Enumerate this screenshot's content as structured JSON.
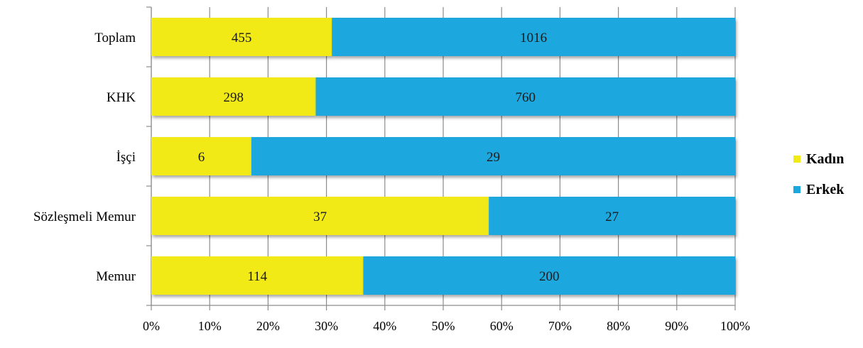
{
  "chart_data": {
    "type": "bar",
    "orientation": "horizontal",
    "stacking": "percent",
    "categories": [
      "Toplam",
      "KHK",
      "İşçi",
      "Sözleşmeli Memur",
      "Memur"
    ],
    "series": [
      {
        "name": "Kadın",
        "values": [
          455,
          298,
          6,
          37,
          114
        ],
        "color": "#f2ea14"
      },
      {
        "name": "Erkek",
        "values": [
          1016,
          760,
          29,
          27,
          200
        ],
        "color": "#1ba8de"
      }
    ],
    "xlim": [
      0,
      100
    ],
    "x_ticks": [
      "0%",
      "10%",
      "20%",
      "30%",
      "40%",
      "50%",
      "60%",
      "70%",
      "80%",
      "90%",
      "100%"
    ],
    "grid": true,
    "legend": "right",
    "data_labels": true
  }
}
